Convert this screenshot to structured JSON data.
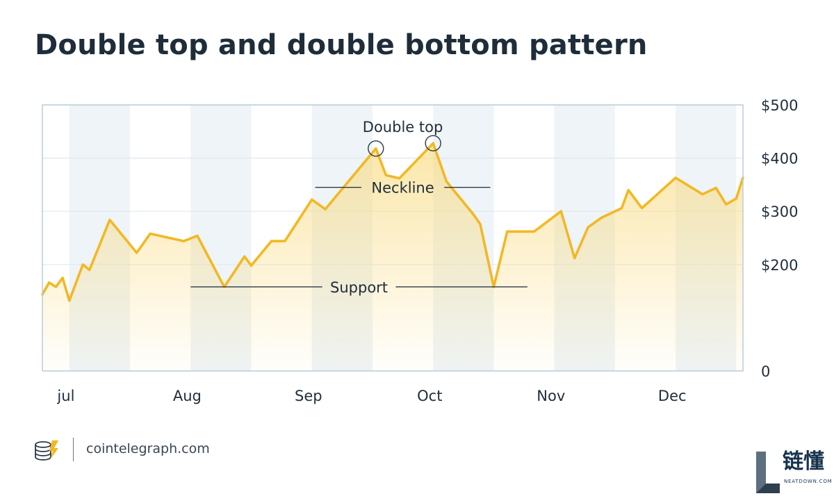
{
  "title": "Double top and double bottom pattern",
  "source": "cointelegraph.com",
  "watermark": {
    "cn": "链懂",
    "en": "NEATDOWN.COM"
  },
  "colors": {
    "line": "#f2b824",
    "fill_top": "#f9d97a",
    "grid": "#dfe8ee",
    "band": "#eef4f7",
    "frame": "#b9ccd9",
    "text": "#1f2d3a",
    "annotation_line": "#2c3a48"
  },
  "chart_data": {
    "type": "area",
    "title": "Double top and double bottom pattern",
    "xlabel": "",
    "ylabel": "",
    "x_domain": [
      0,
      104
    ],
    "ylim": [
      0,
      500
    ],
    "y_ticks": [
      {
        "value": 0,
        "label": "0"
      },
      {
        "value": 200,
        "label": "$200"
      },
      {
        "value": 300,
        "label": "$300"
      },
      {
        "value": 400,
        "label": "$400"
      },
      {
        "value": 500,
        "label": "$500"
      }
    ],
    "x_ticks": [
      {
        "x": 3.5,
        "label": "jul"
      },
      {
        "x": 21.5,
        "label": "Aug"
      },
      {
        "x": 39.5,
        "label": "Sep"
      },
      {
        "x": 57.5,
        "label": "Oct"
      },
      {
        "x": 75.5,
        "label": "Nov"
      },
      {
        "x": 93.5,
        "label": "Dec"
      }
    ],
    "shaded_bands": [
      [
        4,
        13
      ],
      [
        22,
        31
      ],
      [
        40,
        49
      ],
      [
        58,
        67
      ],
      [
        76,
        85
      ],
      [
        94,
        103
      ]
    ],
    "grid": true,
    "series": [
      {
        "points": [
          [
            0,
            144
          ],
          [
            1,
            166
          ],
          [
            2,
            158
          ],
          [
            3,
            175
          ],
          [
            4,
            132
          ],
          [
            6,
            200
          ],
          [
            7,
            190
          ],
          [
            10,
            284
          ],
          [
            14,
            222
          ],
          [
            16,
            258
          ],
          [
            21,
            244
          ],
          [
            23,
            254
          ],
          [
            27,
            158
          ],
          [
            30,
            215
          ],
          [
            31,
            198
          ],
          [
            34,
            244
          ],
          [
            36,
            244
          ],
          [
            40,
            322
          ],
          [
            42,
            304
          ],
          [
            49.5,
            418
          ],
          [
            51,
            368
          ],
          [
            53,
            362
          ],
          [
            58,
            428
          ],
          [
            60,
            356
          ],
          [
            64,
            294
          ],
          [
            65,
            276
          ],
          [
            67,
            158
          ],
          [
            69,
            262
          ],
          [
            73,
            262
          ],
          [
            77,
            300
          ],
          [
            79,
            212
          ],
          [
            81,
            270
          ],
          [
            83,
            288
          ],
          [
            86,
            306
          ],
          [
            87,
            340
          ],
          [
            89,
            306
          ],
          [
            94,
            363
          ],
          [
            98,
            332
          ],
          [
            100,
            344
          ],
          [
            101.5,
            313
          ],
          [
            103,
            324
          ],
          [
            104,
            363
          ]
        ]
      }
    ],
    "annotations": [
      {
        "type": "label",
        "text": "Double top",
        "x": 53.5,
        "y": 370
      },
      {
        "type": "circle",
        "x": 49.5,
        "y": 418
      },
      {
        "type": "circle",
        "x": 58,
        "y": 428
      },
      {
        "type": "line",
        "text": "Neckline",
        "x1": 40.5,
        "x2": 66.5,
        "y": 345
      },
      {
        "type": "line",
        "text": "Support",
        "x1": 22,
        "x2": 72,
        "y": 158
      }
    ]
  }
}
